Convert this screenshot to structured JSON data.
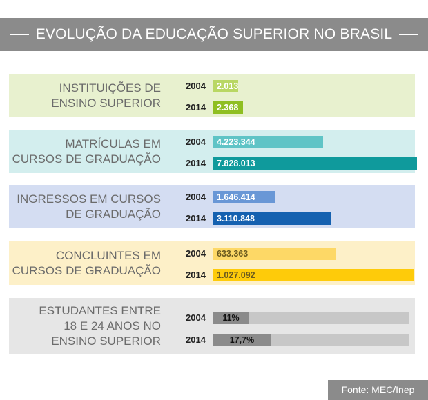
{
  "title": "EVOLUÇÃO DA EDUCAÇÃO SUPERIOR NO BRASIL",
  "source": "Fonte: MEC/Inep",
  "chart_data": {
    "type": "bar",
    "groups": [
      {
        "label_lines": [
          "INSTITUIÇÕES DE",
          "ENSINO SUPERIOR"
        ],
        "panel_color": "#e8f1cf",
        "colors": [
          "#b9d764",
          "#8fbf21"
        ],
        "label_colors": [
          "#ffffff",
          "#ffffff"
        ],
        "track": false,
        "years": [
          "2004",
          "2014"
        ],
        "values": [
          2013,
          2368
        ],
        "value_labels": [
          "2.013",
          "2.368"
        ],
        "scale_max": 16000
      },
      {
        "label_lines": [
          "MATRÍCULAS EM",
          "CURSOS DE GRADUAÇÃO"
        ],
        "panel_color": "#d3eeee",
        "colors": [
          "#5fc4c6",
          "#0f9a9c"
        ],
        "label_colors": [
          "#ffffff",
          "#ffffff"
        ],
        "track": false,
        "years": [
          "2004",
          "2014"
        ],
        "values": [
          4223344,
          7828013
        ],
        "value_labels": [
          "4.223.344",
          "7.828.013"
        ],
        "scale_max": 7828013
      },
      {
        "label_lines": [
          "INGRESSOS EM CURSOS",
          "DE GRADUAÇÃO"
        ],
        "panel_color": "#d4ddf2",
        "colors": [
          "#6997d6",
          "#1561b0"
        ],
        "label_colors": [
          "#ffffff",
          "#ffffff"
        ],
        "track": false,
        "years": [
          "2004",
          "2014"
        ],
        "values": [
          1646414,
          3110848
        ],
        "value_labels": [
          "1.646.414",
          "3.110.848"
        ],
        "scale_max": 5400000
      },
      {
        "label_lines": [
          "CONCLUINTES EM",
          "CURSOS DE GRADUAÇÃO"
        ],
        "panel_color": "#fdf0c8",
        "colors": [
          "#fdd866",
          "#fecb0a"
        ],
        "label_colors": [
          "#6b5a1f",
          "#6b5a1f"
        ],
        "track": false,
        "years": [
          "2004",
          "2014"
        ],
        "values": [
          633363,
          1027092
        ],
        "value_labels": [
          "633.363",
          "1.027.092"
        ],
        "scale_max": 1045000
      },
      {
        "label_lines": [
          "ESTUDANTES ENTRE",
          "18 E 24 ANOS NO",
          "ENSINO SUPERIOR"
        ],
        "panel_color": "#e6e6e6",
        "colors": [
          "#8b8b8b",
          "#8b8b8b"
        ],
        "label_colors": [
          "#111111",
          "#111111"
        ],
        "track": true,
        "years": [
          "2004",
          "2014"
        ],
        "values": [
          11,
          17.7
        ],
        "value_labels": [
          "11%",
          "17,7%"
        ],
        "scale_max": 62
      }
    ]
  }
}
